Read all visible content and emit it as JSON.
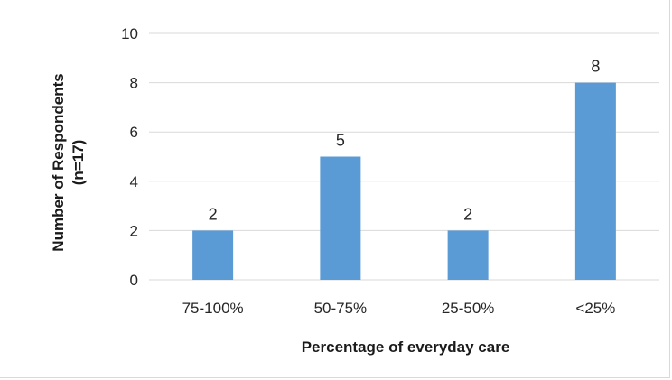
{
  "chart_data": {
    "type": "bar",
    "title": "",
    "categories": [
      "75-100%",
      "50-75%",
      "25-50%",
      "<25%"
    ],
    "values": [
      2,
      5,
      2,
      8
    ],
    "data_labels": [
      "2",
      "5",
      "2",
      "8"
    ],
    "xlabel": "Percentage of everyday care",
    "ylabel_line1": "Number of Respondents",
    "ylabel_line2": "(n=17)",
    "ylim": [
      0,
      10
    ],
    "yticks": [
      0,
      2,
      4,
      6,
      8,
      10
    ],
    "ytick_labels": [
      "0",
      "2",
      "4",
      "6",
      "8",
      "10"
    ],
    "grid": true,
    "legend": "none",
    "bar_color": "#5b9bd5"
  }
}
